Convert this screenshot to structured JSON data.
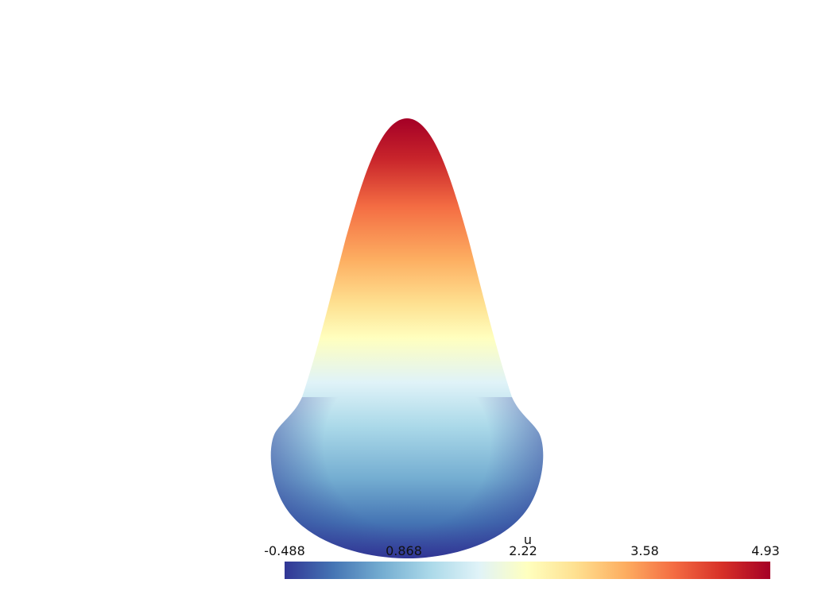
{
  "render": {
    "field_name": "u",
    "colormap": "RdYlBu_r",
    "colormap_stops": [
      "#313695",
      "#4575b4",
      "#74add1",
      "#abd9e9",
      "#e0f3f8",
      "#ffffbf",
      "#fee090",
      "#fdae61",
      "#f46d43",
      "#d73027",
      "#a50026"
    ],
    "background_color": "#ffffff"
  },
  "scalar_bar": {
    "title": "u",
    "range": [
      -0.488,
      4.93
    ],
    "tick_labels": [
      "-0.488",
      "0.868",
      "2.22",
      "3.58",
      "4.93"
    ]
  }
}
